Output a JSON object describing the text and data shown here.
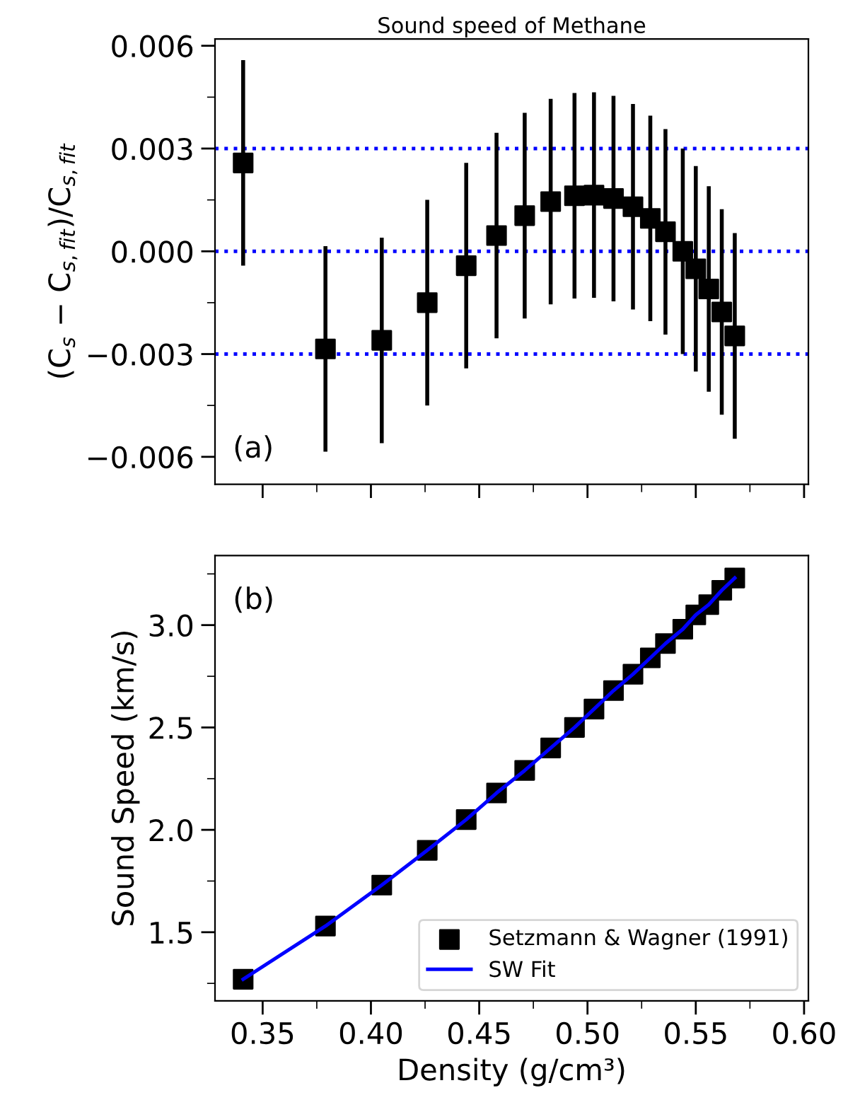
{
  "chart_data": [
    {
      "type": "scatter",
      "title": "Sound speed of Methane",
      "ylabel": "(C$_{s}$ − C$_{s,fit}$)/C$_{s,fit}$",
      "annotations": [
        "(a)"
      ],
      "x": [
        0.341,
        0.379,
        0.405,
        0.426,
        0.444,
        0.458,
        0.471,
        0.483,
        0.494,
        0.503,
        0.512,
        0.521,
        0.529,
        0.536,
        0.544,
        0.55,
        0.556,
        0.562,
        0.568
      ],
      "series": [
        {
          "color": "#000000",
          "marker": "square",
          "values": [
            0.00258,
            -0.00285,
            -0.0026,
            -0.0015,
            -0.00042,
            0.00046,
            0.00104,
            0.00145,
            0.00162,
            0.00164,
            0.00154,
            0.0013,
            0.00096,
            0.00057,
            0.0,
            -0.00051,
            -0.0011,
            -0.00177,
            -0.00247
          ],
          "errors": [
            0.003,
            0.003,
            0.003,
            0.003,
            0.003,
            0.003,
            0.003,
            0.003,
            0.003,
            0.003,
            0.003,
            0.003,
            0.003,
            0.003,
            0.003,
            0.003,
            0.003,
            0.003,
            0.003
          ]
        }
      ],
      "ref_lines": [
        {
          "axis": "y",
          "value": 0.003,
          "color": "#0000ff",
          "line_style": "dotted"
        },
        {
          "axis": "y",
          "value": 0,
          "color": "#0000ff",
          "line_style": "dotted"
        },
        {
          "axis": "y",
          "value": -0.003,
          "color": "#0000ff",
          "line_style": "dotted"
        }
      ],
      "xlim": [
        0.328,
        0.602
      ],
      "ylim": [
        -0.0068,
        0.0062
      ],
      "xticks": [
        0.35,
        {
          "value": 0.375,
          "label": null
        },
        0.4,
        {
          "value": 0.425,
          "label": null
        },
        0.45,
        {
          "value": 0.475,
          "label": null
        },
        0.5,
        {
          "value": 0.525,
          "label": null
        },
        0.55,
        {
          "value": 0.575,
          "label": null
        },
        0.6
      ],
      "yticks": [
        {
          "value": -0.006,
          "label": "−0.006"
        },
        {
          "value": -0.0045,
          "label": null
        },
        {
          "value": -0.003,
          "label": "−0.003"
        },
        {
          "value": -0.0015,
          "label": null
        },
        {
          "value": 0,
          "label": "0.000"
        },
        {
          "value": 0.0015,
          "label": null
        },
        {
          "value": 0.003,
          "label": "0.003"
        },
        {
          "value": 0.0045,
          "label": null
        },
        {
          "value": 0.006,
          "label": "0.006"
        }
      ],
      "tick_labels": "y",
      "grid": false,
      "legend": false
    },
    {
      "type": "scatter",
      "xlabel": "Density (g/cm³)",
      "ylabel": "Sound Speed (km/s)",
      "annotations": [
        "(b)"
      ],
      "x": [
        0.341,
        0.379,
        0.405,
        0.426,
        0.444,
        0.458,
        0.471,
        0.483,
        0.494,
        0.503,
        0.512,
        0.521,
        0.529,
        0.536,
        0.544,
        0.55,
        0.556,
        0.562,
        0.568
      ],
      "series": [
        {
          "name": "Setzmann & Wagner (1991)",
          "color": "#000000",
          "marker": "square",
          "values": [
            1.27,
            1.53,
            1.73,
            1.9,
            2.05,
            2.18,
            2.29,
            2.4,
            2.5,
            2.59,
            2.68,
            2.76,
            2.84,
            2.91,
            2.98,
            3.05,
            3.1,
            3.17,
            3.23
          ]
        },
        {
          "name": "SW Fit",
          "type": "line",
          "color": "#0000ff",
          "line_style": "solid",
          "values": [
            1.27,
            1.53,
            1.73,
            1.9,
            2.05,
            2.18,
            2.29,
            2.4,
            2.5,
            2.59,
            2.68,
            2.76,
            2.84,
            2.91,
            2.98,
            3.05,
            3.1,
            3.17,
            3.23
          ]
        }
      ],
      "xlim": [
        0.328,
        0.602
      ],
      "ylim": [
        1.165,
        3.34
      ],
      "xticks": [
        0.35,
        {
          "value": 0.375,
          "label": null
        },
        {
          "value": 0.4,
          "label": "0.40"
        },
        {
          "value": 0.425,
          "label": null
        },
        0.45,
        {
          "value": 0.475,
          "label": null
        },
        {
          "value": 0.5,
          "label": "0.50"
        },
        {
          "value": 0.525,
          "label": null
        },
        0.55,
        {
          "value": 0.575,
          "label": null
        },
        {
          "value": 0.6,
          "label": "0.60"
        }
      ],
      "yticks": [
        {
          "value": 1.25,
          "label": null
        },
        1.5,
        {
          "value": 1.75,
          "label": null
        },
        {
          "value": 2,
          "label": "2.0"
        },
        {
          "value": 2.25,
          "label": null
        },
        2.5,
        {
          "value": 2.75,
          "label": null
        },
        {
          "value": 3,
          "label": "3.0"
        },
        {
          "value": 3.25,
          "label": null
        }
      ],
      "grid": false,
      "legend": "bottom right"
    }
  ]
}
